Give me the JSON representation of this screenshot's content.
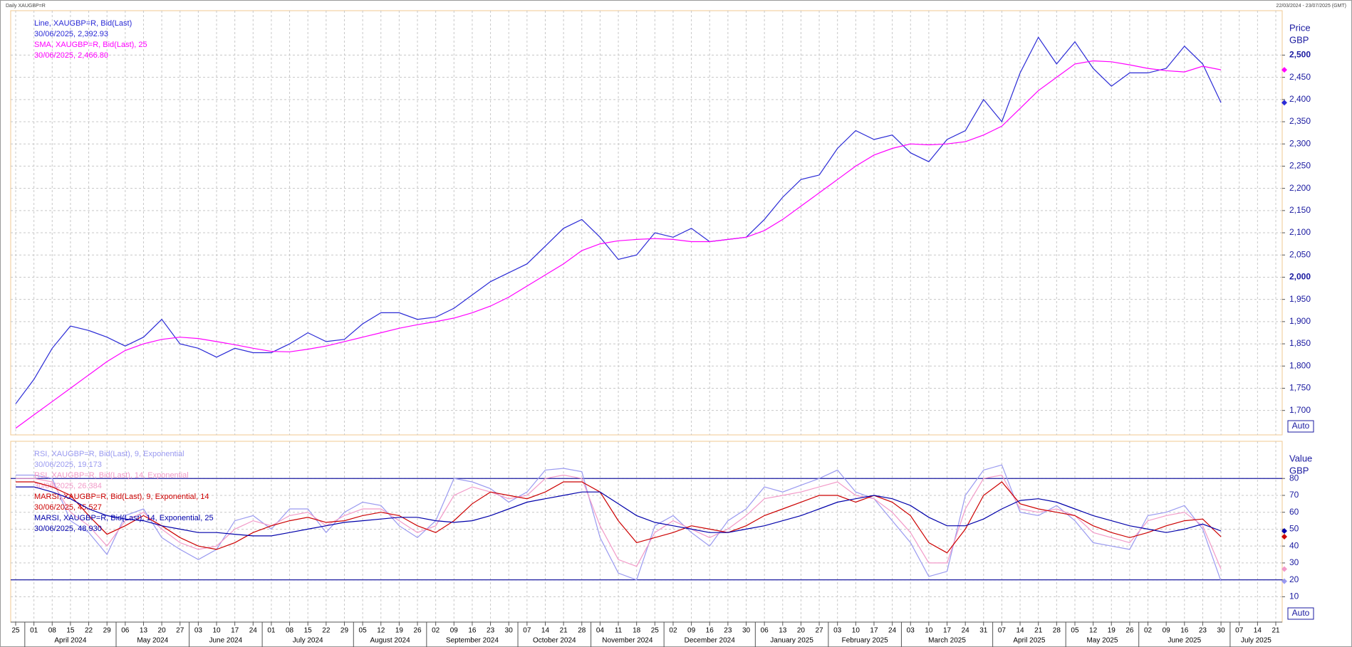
{
  "header": {
    "title": "Daily XAUGBP=R",
    "range": "22/03/2024 - 23/07/2025 (GMT)"
  },
  "chart_data": [
    {
      "type": "line",
      "y_axis_title": "Price",
      "y_axis_unit": "GBP",
      "auto_button": "Auto",
      "categories": [
        "25",
        "01",
        "08",
        "15",
        "22",
        "29",
        "06",
        "13",
        "20",
        "27",
        "03",
        "10",
        "17",
        "24",
        "01",
        "08",
        "15",
        "22",
        "29",
        "05",
        "12",
        "19",
        "26",
        "02",
        "09",
        "16",
        "23",
        "30",
        "07",
        "14",
        "21",
        "28",
        "04",
        "11",
        "18",
        "25",
        "02",
        "09",
        "16",
        "23",
        "30",
        "06",
        "13",
        "20",
        "27",
        "03",
        "10",
        "17",
        "24",
        "03",
        "10",
        "17",
        "24",
        "31",
        "07",
        "14",
        "21",
        "28",
        "05",
        "12",
        "19",
        "26",
        "02",
        "09",
        "16",
        "23",
        "30",
        "07",
        "14",
        "21"
      ],
      "months": [
        null,
        "April 2024",
        "May 2024",
        "June 2024",
        "July 2024",
        "August 2024",
        "September 2024",
        "October 2024",
        "November 2024",
        "December 2024",
        "January 2025",
        "February 2025",
        "March 2025",
        "April 2025",
        "May 2025",
        "June 2025",
        "July 2025"
      ],
      "ylim": [
        1645,
        2600
      ],
      "yticks": [
        {
          "value": 1700,
          "label": "1,700"
        },
        {
          "value": 1750,
          "label": "1,750"
        },
        {
          "value": 1800,
          "label": "1,800"
        },
        {
          "value": 1850,
          "label": "1,850"
        },
        {
          "value": 1900,
          "label": "1,900"
        },
        {
          "value": 1950,
          "label": "1,950"
        },
        {
          "value": 2000,
          "label": "2,000"
        },
        {
          "value": 2050,
          "label": "2,050"
        },
        {
          "value": 2100,
          "label": "2,100"
        },
        {
          "value": 2150,
          "label": "2,150"
        },
        {
          "value": 2200,
          "label": "2,200"
        },
        {
          "value": 2250,
          "label": "2,250"
        },
        {
          "value": 2300,
          "label": "2,300"
        },
        {
          "value": 2350,
          "label": "2,350"
        },
        {
          "value": 2400,
          "label": "2,400"
        },
        {
          "value": 2450,
          "label": "2,450"
        },
        {
          "value": 2500,
          "label": "2,500"
        }
      ],
      "grid": true,
      "series": [
        {
          "name": "Line, XAUGBP=R, Bid(Last)",
          "last_label": "30/06/2025, 2,392.93",
          "color": "#2b2bd6",
          "values": [
            1715,
            1770,
            1840,
            1890,
            1880,
            1865,
            1845,
            1865,
            1905,
            1850,
            1840,
            1820,
            1840,
            1830,
            1830,
            1850,
            1875,
            1855,
            1860,
            1895,
            1920,
            1920,
            1905,
            1910,
            1930,
            1960,
            1990,
            2010,
            2030,
            2070,
            2110,
            2130,
            2090,
            2040,
            2050,
            2100,
            2090,
            2110,
            2080,
            2085,
            2090,
            2130,
            2180,
            2220,
            2230,
            2290,
            2330,
            2310,
            2320,
            2280,
            2260,
            2310,
            2330,
            2400,
            2350,
            2460,
            2540,
            2480,
            2530,
            2470,
            2430,
            2460,
            2460,
            2470,
            2520,
            2480,
            2392.93,
            null,
            null,
            null
          ]
        },
        {
          "name": "SMA, XAUGBP=R, Bid(Last),  25",
          "last_label": "30/06/2025, 2,466.80",
          "color": "#ff00ff",
          "values": [
            1660,
            1690,
            1720,
            1750,
            1780,
            1810,
            1835,
            1850,
            1860,
            1865,
            1862,
            1855,
            1848,
            1840,
            1833,
            1832,
            1838,
            1845,
            1855,
            1865,
            1875,
            1885,
            1893,
            1900,
            1908,
            1920,
            1935,
            1955,
            1980,
            2005,
            2030,
            2060,
            2075,
            2082,
            2085,
            2087,
            2085,
            2080,
            2080,
            2085,
            2090,
            2105,
            2130,
            2160,
            2190,
            2220,
            2250,
            2275,
            2290,
            2300,
            2298,
            2300,
            2305,
            2320,
            2340,
            2380,
            2420,
            2450,
            2480,
            2487,
            2485,
            2478,
            2470,
            2465,
            2462,
            2475,
            2466.8,
            null,
            null,
            null
          ]
        }
      ]
    },
    {
      "type": "line",
      "y_axis_title": "Value",
      "y_axis_unit": "GBP",
      "auto_button": "Auto",
      "ylim": [
        -5,
        102
      ],
      "yticks": [
        10,
        20,
        30,
        40,
        50,
        60,
        70,
        80
      ],
      "grid": true,
      "reference_lines": [
        80,
        20
      ],
      "reference_color": "#1a1aa0",
      "series": [
        {
          "name": "RSI, XAUGBP=R, Bid(Last),  9, Exponential",
          "last_label": "30/06/2025, 19.173",
          "color": "#9a9af0",
          "values": [
            82,
            82,
            80,
            55,
            48,
            35,
            58,
            62,
            45,
            38,
            32,
            38,
            55,
            58,
            50,
            62,
            62,
            48,
            60,
            66,
            64,
            52,
            45,
            55,
            80,
            78,
            74,
            66,
            72,
            85,
            86,
            84,
            45,
            24,
            20,
            52,
            58,
            48,
            40,
            55,
            62,
            75,
            72,
            76,
            80,
            85,
            72,
            68,
            55,
            42,
            22,
            25,
            70,
            85,
            88,
            60,
            58,
            64,
            55,
            42,
            40,
            38,
            58,
            60,
            64,
            50,
            19.173,
            null,
            null,
            null
          ]
        },
        {
          "name": "RSI, XAUGBP=R, Bid(Last),  14, Exponential",
          "last_label": "30/06/2025, 26.384",
          "color": "#f29ac8",
          "values": [
            80,
            80,
            78,
            60,
            52,
            40,
            55,
            60,
            50,
            42,
            38,
            40,
            50,
            55,
            52,
            58,
            60,
            52,
            58,
            62,
            62,
            55,
            48,
            52,
            70,
            75,
            72,
            68,
            70,
            80,
            82,
            80,
            52,
            32,
            28,
            48,
            55,
            50,
            45,
            50,
            58,
            68,
            70,
            72,
            75,
            78,
            70,
            68,
            60,
            48,
            30,
            30,
            62,
            80,
            82,
            62,
            60,
            62,
            58,
            48,
            45,
            42,
            55,
            58,
            60,
            52,
            26.384,
            null,
            null,
            null
          ]
        },
        {
          "name": "MARSI, XAUGBP=R, Bid(Last),  9, Exponential, 14",
          "last_label": "30/06/2025, 45.527",
          "color": "#cc0000",
          "values": [
            78,
            78,
            75,
            70,
            58,
            47,
            52,
            58,
            52,
            45,
            40,
            38,
            42,
            48,
            52,
            55,
            57,
            54,
            55,
            58,
            60,
            58,
            52,
            48,
            55,
            65,
            72,
            70,
            68,
            72,
            78,
            78,
            72,
            55,
            42,
            45,
            48,
            52,
            50,
            48,
            52,
            58,
            62,
            66,
            70,
            70,
            66,
            70,
            66,
            58,
            42,
            36,
            50,
            70,
            78,
            65,
            62,
            60,
            58,
            52,
            48,
            45,
            48,
            52,
            55,
            56,
            45.527,
            null,
            null,
            null
          ]
        },
        {
          "name": "MARSI, XAUGBP=R, Bid(Last),  14, Exponential, 25",
          "last_label": "30/06/2025, 48.930",
          "color": "#0000aa",
          "values": [
            75,
            75,
            72,
            68,
            62,
            58,
            56,
            55,
            52,
            50,
            48,
            48,
            47,
            46,
            46,
            48,
            50,
            52,
            54,
            55,
            56,
            57,
            57,
            55,
            54,
            55,
            58,
            62,
            66,
            68,
            70,
            72,
            72,
            65,
            58,
            54,
            52,
            50,
            48,
            48,
            50,
            52,
            55,
            58,
            62,
            66,
            68,
            70,
            68,
            64,
            57,
            52,
            52,
            56,
            62,
            67,
            68,
            66,
            62,
            58,
            55,
            52,
            50,
            48,
            50,
            53,
            48.93,
            null,
            null,
            null
          ]
        }
      ]
    }
  ]
}
